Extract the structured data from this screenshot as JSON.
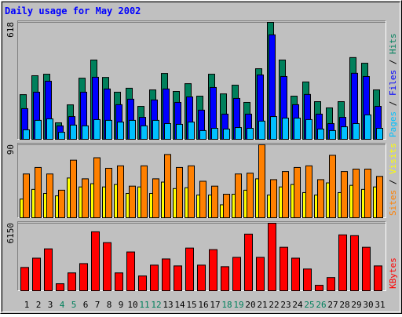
{
  "chart_data": {
    "type": "bar",
    "title": "Daily usage for May 2002",
    "categories": [
      "1",
      "2",
      "3",
      "4",
      "5",
      "6",
      "7",
      "8",
      "9",
      "10",
      "11",
      "12",
      "13",
      "14",
      "15",
      "16",
      "17",
      "18",
      "19",
      "20",
      "21",
      "22",
      "23",
      "24",
      "25",
      "26",
      "27",
      "28",
      "29",
      "30",
      "31"
    ],
    "category_colors": [
      "#000000",
      "#000000",
      "#000000",
      "#00805c",
      "#00805c",
      "#000000",
      "#000000",
      "#000000",
      "#000000",
      "#000000",
      "#00805c",
      "#00805c",
      "#000000",
      "#000000",
      "#000000",
      "#000000",
      "#000000",
      "#00805c",
      "#00805c",
      "#000000",
      "#000000",
      "#000000",
      "#000000",
      "#000000",
      "#00805c",
      "#00805c",
      "#000000",
      "#000000",
      "#000000",
      "#000000",
      "#000000"
    ],
    "legend_separator": " / ",
    "panels": [
      {
        "ylim": [
          0,
          618
        ],
        "yticks": [
          618
        ],
        "series": [
          {
            "name": "Hits",
            "color": "#00805c",
            "values": [
              236,
              336,
              344,
              87,
              182,
              323,
              419,
              327,
              249,
              270,
              174,
              261,
              348,
              253,
              294,
              228,
              344,
              240,
              286,
              195,
              373,
              618,
              419,
              228,
              303,
              199,
              166,
              199,
              432,
              402,
              261
            ]
          },
          {
            "name": "Files",
            "color": "#0000ff",
            "values": [
              162,
              249,
              307,
              71,
              120,
              249,
              328,
              266,
              183,
              212,
              116,
              208,
              266,
              195,
              224,
              154,
              274,
              133,
              216,
              133,
              340,
              552,
              332,
              183,
              237,
              133,
              83,
              116,
              349,
              332,
              174
            ]
          },
          {
            "name": "Pages",
            "color": "#00c0ff",
            "values": [
              50,
              100,
              108,
              37,
              75,
              71,
              104,
              100,
              91,
              100,
              71,
              100,
              83,
              79,
              91,
              46,
              58,
              54,
              62,
              58,
              96,
              120,
              112,
              112,
              104,
              54,
              46,
              66,
              83,
              129,
              58
            ]
          }
        ]
      },
      {
        "ylim": [
          0,
          90
        ],
        "yticks": [
          90
        ],
        "series": [
          {
            "name": "Visits",
            "color": "#ffff00",
            "values": [
              23,
              35,
              30,
              27,
              49,
              38,
              42,
              38,
              41,
              30,
              38,
              30,
              44,
              36,
              37,
              28,
              28,
              16,
              29,
              34,
              48,
              28,
              38,
              41,
              31,
              28,
              43,
              31,
              40,
              35,
              38
            ]
          },
          {
            "name": "Sites",
            "color": "#ff8000",
            "values": [
              54,
              62,
              54,
              34,
              71,
              48,
              74,
              61,
              64,
              39,
              64,
              48,
              78,
              62,
              64,
              45,
              39,
              29,
              54,
              55,
              90,
              47,
              57,
              62,
              64,
              47,
              77,
              57,
              60,
              60,
              51
            ]
          }
        ]
      },
      {
        "ylim": [
          0,
          6150
        ],
        "yticks": [
          6150
        ],
        "series": [
          {
            "name": "KBytes",
            "color": "#ff0000",
            "values": [
              2121,
              2969,
              3817,
              636,
              1626,
              2474,
              5372,
              4383,
              1626,
              3534,
              1343,
              2333,
              2898,
              2262,
              3888,
              2333,
              3747,
              2191,
              3040,
              5160,
              3040,
              6150,
              3959,
              2969,
              1980,
              495,
              1202,
              5090,
              5019,
              3959,
              2262
            ]
          }
        ]
      }
    ]
  }
}
